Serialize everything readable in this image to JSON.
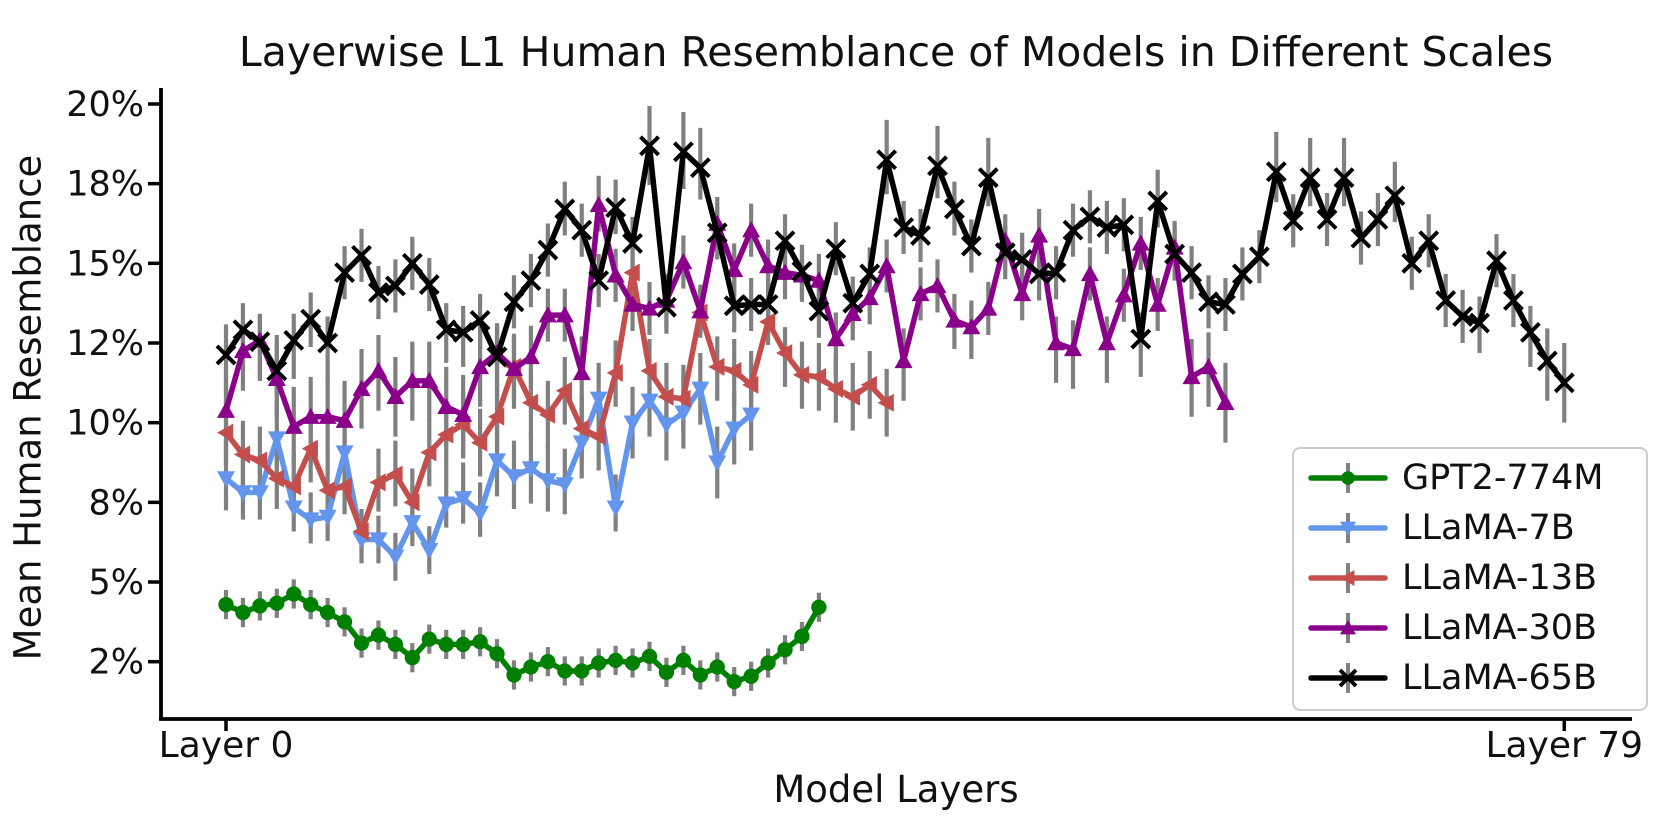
{
  "figure": {
    "title": "Layerwise L1 Human Resemblance of Models in Different Scales",
    "x_axis_label": "Model Layers",
    "y_axis_label": "Mean Human Resemblance"
  },
  "chart_data": {
    "type": "line",
    "title": "Layerwise L1 Human Resemblance of Models in Different Scales",
    "xlabel": "Model Layers",
    "ylabel": "Mean Human Resemblance",
    "x": "model layer index (one point per layer)",
    "x_tick_labels": [
      "Layer 0",
      "Layer 79"
    ],
    "x_tick_layers": [
      0,
      79
    ],
    "y_tick_labels": [
      "20%",
      "18%",
      "15%",
      "12%",
      "10%",
      "8%",
      "5%",
      "2%"
    ],
    "y_tick_values": [
      20,
      18,
      15,
      12,
      10,
      8,
      5,
      2
    ],
    "y_axis_note": "tick marks are evenly spaced on screen although values are non-uniform; values in percent",
    "grid": false,
    "legend_position": "lower right",
    "error_bars": "gray vertical bars on every point, approx constant half-length per series (value units)",
    "series": [
      {
        "name": "GPT2-774M",
        "color": "#008000",
        "marker": "circle",
        "err": 0.55,
        "n_layers": 36,
        "values": [
          4.15,
          3.85,
          4.1,
          4.2,
          4.55,
          4.15,
          3.85,
          3.5,
          2.7,
          3.0,
          2.65,
          2.15,
          2.85,
          2.65,
          2.65,
          2.75,
          2.3,
          1.5,
          1.8,
          2.0,
          1.65,
          1.65,
          1.95,
          2.05,
          1.95,
          2.2,
          1.6,
          2.05,
          1.5,
          1.8,
          1.25,
          1.45,
          1.95,
          2.45,
          2.95,
          4.05
        ]
      },
      {
        "name": "LLaMA-7B",
        "color": "#6495ED",
        "marker": "triangle-down",
        "err": 0.9,
        "n_layers": 32,
        "values": [
          8.6,
          8.25,
          8.25,
          9.6,
          7.8,
          7.35,
          7.45,
          9.25,
          6.6,
          6.6,
          5.95,
          7.25,
          6.2,
          7.95,
          8.1,
          7.6,
          9.05,
          8.65,
          8.85,
          8.55,
          8.45,
          9.5,
          10.6,
          7.8,
          10.0,
          10.55,
          9.95,
          10.25,
          10.85,
          9.0,
          9.85,
          10.2
        ]
      },
      {
        "name": "LLaMA-13B",
        "color": "#C44E4C",
        "marker": "triangle-left",
        "err": 0.85,
        "n_layers": 40,
        "values": [
          9.75,
          9.2,
          9.05,
          8.6,
          8.4,
          9.35,
          8.3,
          8.4,
          6.9,
          8.5,
          8.7,
          8.0,
          9.25,
          9.7,
          9.95,
          9.5,
          10.15,
          11.4,
          10.5,
          10.2,
          10.8,
          9.85,
          9.65,
          11.25,
          14.65,
          11.3,
          10.65,
          10.6,
          13.15,
          11.4,
          11.3,
          10.95,
          12.8,
          11.75,
          11.2,
          11.15,
          10.85,
          10.65,
          10.95,
          10.5
        ]
      },
      {
        "name": "LLaMA-30B",
        "color": "#8B008B",
        "marker": "triangle-up",
        "err": 1.0,
        "n_layers": 60,
        "values": [
          10.3,
          11.8,
          12.1,
          11.1,
          9.9,
          10.15,
          10.15,
          10.05,
          10.85,
          11.3,
          10.65,
          11.05,
          11.05,
          10.4,
          10.2,
          11.4,
          11.75,
          11.35,
          11.65,
          13.05,
          13.05,
          11.25,
          17.2,
          14.55,
          13.45,
          13.3,
          13.6,
          15.05,
          13.2,
          16.5,
          14.75,
          16.25,
          14.9,
          14.65,
          14.55,
          14.35,
          12.15,
          13.1,
          13.7,
          14.9,
          11.55,
          13.85,
          14.15,
          12.85,
          12.6,
          13.3,
          15.85,
          13.85,
          16.05,
          12.0,
          11.85,
          14.6,
          12.0,
          13.8,
          15.75,
          13.45,
          15.6,
          11.15,
          11.4,
          10.5
        ]
      },
      {
        "name": "LLaMA-65B",
        "color": "#000000",
        "marker": "x",
        "err": 1.0,
        "n_layers": 80,
        "values": [
          11.7,
          12.5,
          12.05,
          11.3,
          12.1,
          12.9,
          12.0,
          14.65,
          15.3,
          13.9,
          14.15,
          15.0,
          14.2,
          12.5,
          12.4,
          12.85,
          11.65,
          13.55,
          14.35,
          15.5,
          17.05,
          16.25,
          14.35,
          17.1,
          15.75,
          18.95,
          13.35,
          18.8,
          18.4,
          16.15,
          13.4,
          13.45,
          13.45,
          15.85,
          14.7,
          13.2,
          15.55,
          13.5,
          14.6,
          18.6,
          16.35,
          16.05,
          18.45,
          17.05,
          15.65,
          18.15,
          15.4,
          15.15,
          14.6,
          14.65,
          16.25,
          16.75,
          16.35,
          16.45,
          12.15,
          17.35,
          15.35,
          14.65,
          13.55,
          13.45,
          14.6,
          15.25,
          18.3,
          16.6,
          18.15,
          16.65,
          18.15,
          15.95,
          16.65,
          17.55,
          15.0,
          15.85,
          13.6,
          13.0,
          12.75,
          15.1,
          13.6,
          12.4,
          11.55,
          11.0
        ]
      }
    ],
    "error_bar_color": "#808080"
  }
}
